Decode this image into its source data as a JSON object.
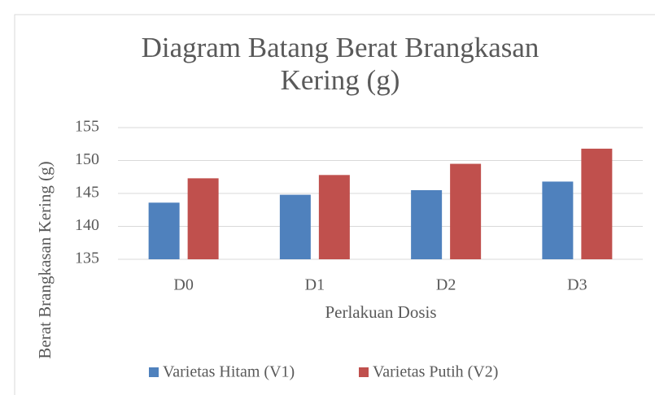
{
  "chart_data": {
    "type": "bar",
    "title": "Diagram Batang Berat Brangkasan Kering (g)",
    "x_label": "Perlakuan Dosis",
    "y_label": "Berat Brangkasan Kering (g)",
    "categories": [
      "D0",
      "D1",
      "D2",
      "D3"
    ],
    "series": [
      {
        "name": "Varietas Hitam (V1)",
        "color": "#4f81bd",
        "values": [
          143.6,
          144.8,
          145.5,
          146.8
        ]
      },
      {
        "name": "Varietas Putih (V2)",
        "color": "#c0504d",
        "values": [
          147.3,
          147.8,
          149.5,
          151.8
        ]
      }
    ],
    "ylim": [
      135,
      155
    ],
    "yticks": [
      135,
      140,
      145,
      150,
      155
    ],
    "grid": true,
    "legend": "bottom"
  }
}
